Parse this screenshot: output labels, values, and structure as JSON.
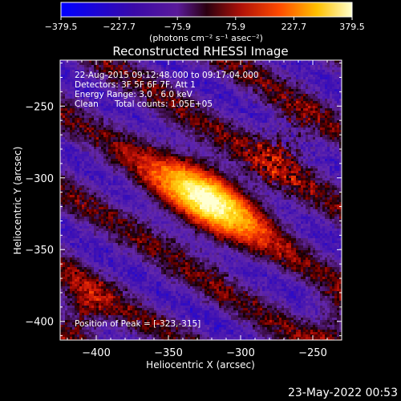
{
  "chart_data": {
    "type": "heatmap",
    "title": "Reconstructed RHESSI Image",
    "xlabel": "Heliocentric X (arcsec)",
    "ylabel": "Heliocentric Y (arcsec)",
    "xlim": [
      -425,
      -230
    ],
    "ylim": [
      -413,
      -218
    ],
    "x_ticks": [
      -400,
      -350,
      -300,
      -250
    ],
    "y_ticks": [
      -250,
      -300,
      -350,
      -400
    ],
    "colorbar": {
      "range": [
        -379.5,
        379.5
      ],
      "ticks": [
        "-379.5",
        "-227.7",
        "-75.9",
        "75.9",
        "227.7",
        "379.5"
      ],
      "unit_label": "(photons cm⁻² s⁻¹ asec⁻²)"
    },
    "annotations": {
      "time_range": "22-Aug-2015 09:12:48.000 to 09:17:04.000",
      "detectors": "Detectors: 3F 5F 6F 7F, Att 1",
      "energy": "Energy Range: 3.0 - 6.0 keV",
      "method": "Clean",
      "total_counts": "Total counts: 1.05E+05",
      "peak": "Position of Peak = [-323,-315]"
    },
    "peak_position": [
      -323,
      -315
    ],
    "peak_value": 379.5,
    "stripe_angle_deg": -32
  },
  "footer": {
    "timestamp": "23-May-2022 00:53"
  }
}
